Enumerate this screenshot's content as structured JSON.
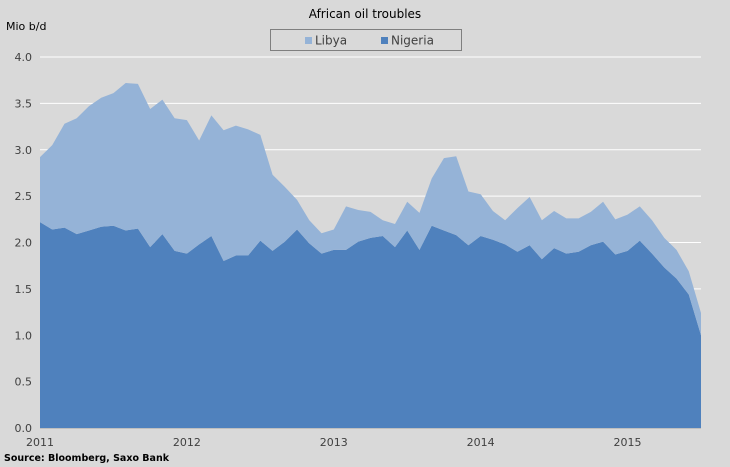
{
  "chart_data": {
    "type": "area",
    "stacked": true,
    "title": "African oil troubles",
    "ylabel": "Mio b/d",
    "xlabel": "",
    "source": "Source: Bloomberg, Saxo Bank",
    "ylim": [
      0,
      4.0
    ],
    "yticks": [
      "0.0",
      "0.5",
      "1.0",
      "1.5",
      "2.0",
      "2.5",
      "3.0",
      "3.5",
      "4.0"
    ],
    "xticks": [
      "2011",
      "2012",
      "2013",
      "2014",
      "2015"
    ],
    "grid": true,
    "legend": "top",
    "background": "#d9d9d9",
    "x": [
      "2011-01",
      "2011-02",
      "2011-03",
      "2011-04",
      "2011-05",
      "2011-06",
      "2011-07",
      "2011-08",
      "2011-09",
      "2011-10",
      "2011-11",
      "2011-12",
      "2012-01",
      "2012-02",
      "2012-03",
      "2012-04",
      "2012-05",
      "2012-06",
      "2012-07",
      "2012-08",
      "2012-09",
      "2012-10",
      "2012-11",
      "2012-12",
      "2013-01",
      "2013-02",
      "2013-03",
      "2013-04",
      "2013-05",
      "2013-06",
      "2013-07",
      "2013-08",
      "2013-09",
      "2013-10",
      "2013-11",
      "2013-12",
      "2014-01",
      "2014-02",
      "2014-03",
      "2014-04",
      "2014-05",
      "2014-06",
      "2014-07",
      "2014-08",
      "2014-09",
      "2014-10",
      "2014-11",
      "2014-12",
      "2015-01",
      "2015-02",
      "2015-03",
      "2015-04",
      "2015-05",
      "2015-06",
      "2015-07"
    ],
    "series": [
      {
        "name": "Nigeria",
        "color": "#4f81bd",
        "values": [
          2.22,
          2.14,
          2.16,
          2.09,
          2.13,
          2.17,
          2.18,
          2.13,
          2.15,
          1.95,
          2.09,
          1.91,
          1.88,
          1.98,
          2.07,
          1.8,
          1.86,
          1.86,
          2.02,
          1.91,
          2.01,
          2.14,
          1.99,
          1.88,
          1.92,
          1.92,
          2.01,
          2.05,
          2.07,
          1.95,
          2.13,
          1.92,
          2.18,
          2.13,
          2.08,
          1.97,
          2.07,
          2.03,
          1.98,
          1.9,
          1.97,
          1.82,
          1.94,
          1.88,
          1.9,
          1.97,
          2.01,
          1.87,
          1.91,
          2.02,
          1.88,
          1.73,
          1.61,
          1.44,
          1.0
        ]
      },
      {
        "name": "Libya",
        "color": "#95b3d7",
        "values": [
          0.7,
          0.91,
          1.12,
          1.25,
          1.34,
          1.39,
          1.43,
          1.59,
          1.56,
          1.49,
          1.45,
          1.43,
          1.44,
          1.12,
          1.3,
          1.41,
          1.4,
          1.36,
          1.14,
          0.82,
          0.59,
          0.32,
          0.25,
          0.22,
          0.22,
          0.47,
          0.34,
          0.28,
          0.17,
          0.25,
          0.31,
          0.4,
          0.51,
          0.78,
          0.85,
          0.58,
          0.45,
          0.31,
          0.26,
          0.47,
          0.52,
          0.42,
          0.4,
          0.38,
          0.36,
          0.36,
          0.43,
          0.38,
          0.39,
          0.37,
          0.36,
          0.32,
          0.31,
          0.25,
          0.24
        ]
      }
    ]
  }
}
